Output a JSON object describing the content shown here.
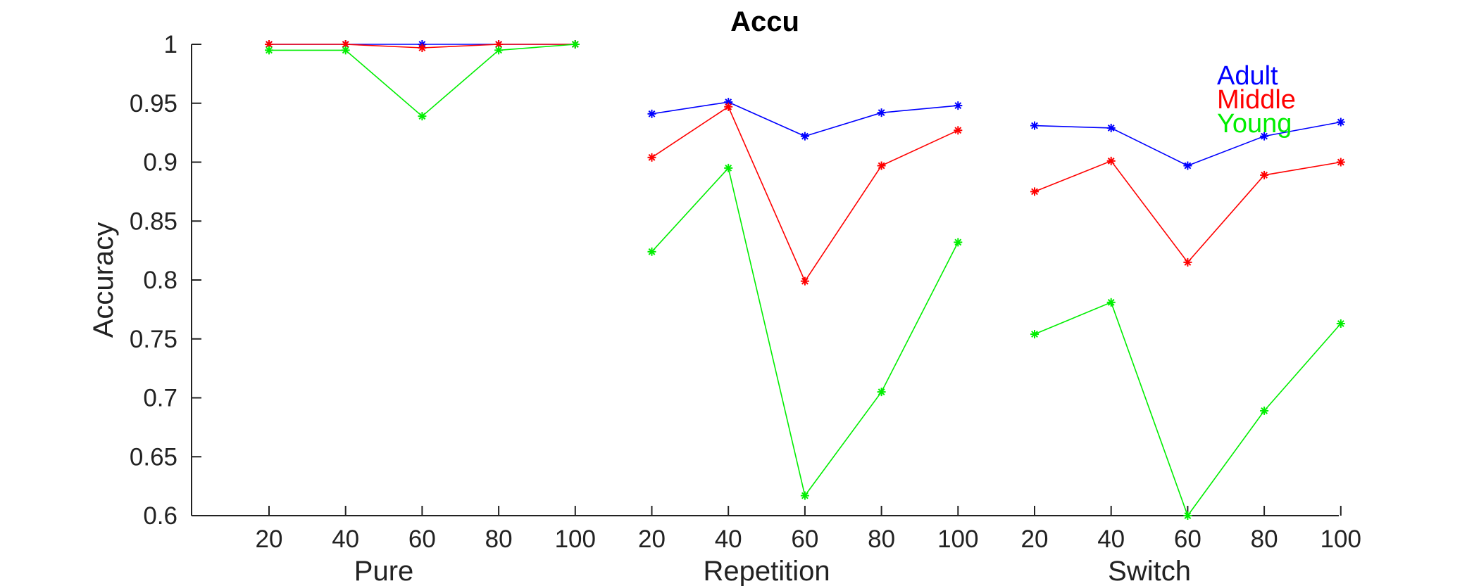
{
  "chart_data": {
    "type": "line",
    "title": "Accu",
    "xlabel": "",
    "ylabel": "Accuracy",
    "ylim": [
      0.6,
      1.0
    ],
    "yticks": [
      "0.6",
      "0.65",
      "0.7",
      "0.75",
      "0.8",
      "0.85",
      "0.9",
      "0.95",
      "1"
    ],
    "grid": false,
    "legend_position": "top-right",
    "groups": [
      {
        "label": "Pure",
        "x": [
          "20",
          "40",
          "60",
          "80",
          "100"
        ]
      },
      {
        "label": "Repetition",
        "x": [
          "20",
          "40",
          "60",
          "80",
          "100"
        ]
      },
      {
        "label": "Switch",
        "x": [
          "20",
          "40",
          "60",
          "80",
          "100"
        ]
      }
    ],
    "series": [
      {
        "name": "Adult",
        "color": "#0000ff",
        "values": [
          [
            1.0,
            1.0,
            1.0,
            1.0,
            1.0
          ],
          [
            0.941,
            0.951,
            0.922,
            0.942,
            0.948
          ],
          [
            0.931,
            0.929,
            0.897,
            0.922,
            0.934
          ]
        ]
      },
      {
        "name": "Middle",
        "color": "#ff0000",
        "values": [
          [
            1.0,
            1.0,
            0.997,
            1.0,
            1.0
          ],
          [
            0.904,
            0.947,
            0.799,
            0.897,
            0.927
          ],
          [
            0.875,
            0.901,
            0.815,
            0.889,
            0.9
          ]
        ]
      },
      {
        "name": "Young",
        "color": "#00ee00",
        "values": [
          [
            0.995,
            0.995,
            0.939,
            0.995,
            1.0
          ],
          [
            0.824,
            0.895,
            0.617,
            0.705,
            0.832
          ],
          [
            0.754,
            0.781,
            0.6,
            0.689,
            0.763
          ]
        ]
      }
    ]
  }
}
